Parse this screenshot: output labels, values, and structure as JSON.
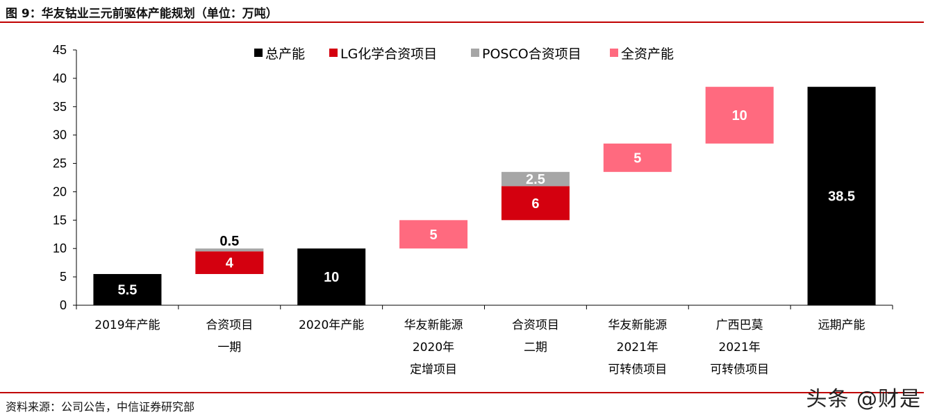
{
  "header": {
    "title": "图 9：华友钴业三元前驱体产能规划（单位：万吨）"
  },
  "footer": {
    "source": "资料来源：公司公告，中信证券研究部",
    "watermark": "头条 @财是"
  },
  "colors": {
    "total": "#000000",
    "lg": "#d4000f",
    "posco": "#a6a6a6",
    "own": "#ff6a7f",
    "rule": "#c00000"
  },
  "chart_data": {
    "type": "bar",
    "subtype": "waterfall-stacked",
    "title": "",
    "xlabel": "",
    "ylabel": "",
    "ylim": [
      0,
      45
    ],
    "yticks": [
      0,
      5,
      10,
      15,
      20,
      25,
      30,
      35,
      40,
      45
    ],
    "grid": false,
    "legend_position": "top",
    "categories": [
      [
        "2019年产能"
      ],
      [
        "合资项目",
        "一期"
      ],
      [
        "2020年产能"
      ],
      [
        "华友新能源",
        "2020年",
        "定增项目"
      ],
      [
        "合资项目",
        "二期"
      ],
      [
        "华友新能源",
        "2021年",
        "可转债项目"
      ],
      [
        "广西巴莫",
        "2021年",
        "可转债项目"
      ],
      [
        "远期产能"
      ]
    ],
    "series": [
      {
        "name": "总产能",
        "color": "#000000",
        "segments": [
          {
            "cat": 0,
            "base": 0,
            "value": 5.5,
            "label": "5.5",
            "label_color": "#ffffff"
          },
          {
            "cat": 2,
            "base": 0,
            "value": 10,
            "label": "10",
            "label_color": "#ffffff"
          },
          {
            "cat": 7,
            "base": 0,
            "value": 38.5,
            "label": "38.5",
            "label_color": "#ffffff"
          }
        ]
      },
      {
        "name": "LG化学合资项目",
        "color": "#d4000f",
        "segments": [
          {
            "cat": 1,
            "base": 5.5,
            "value": 4,
            "label": "4",
            "label_color": "#ffffff"
          },
          {
            "cat": 4,
            "base": 15,
            "value": 6,
            "label": "6",
            "label_color": "#ffffff"
          }
        ]
      },
      {
        "name": "POSCO合资项目",
        "color": "#a6a6a6",
        "segments": [
          {
            "cat": 1,
            "base": 9.5,
            "value": 0.5,
            "label": "0.5",
            "label_color": "#000000",
            "label_outside": true
          },
          {
            "cat": 4,
            "base": 21,
            "value": 2.5,
            "label": "2.5",
            "label_color": "#ffffff"
          }
        ]
      },
      {
        "name": "全资产能",
        "color": "#ff6a7f",
        "segments": [
          {
            "cat": 3,
            "base": 10,
            "value": 5,
            "label": "5",
            "label_color": "#ffffff"
          },
          {
            "cat": 5,
            "base": 23.5,
            "value": 5,
            "label": "5",
            "label_color": "#ffffff"
          },
          {
            "cat": 6,
            "base": 28.5,
            "value": 10,
            "label": "10",
            "label_color": "#ffffff"
          }
        ]
      }
    ]
  }
}
